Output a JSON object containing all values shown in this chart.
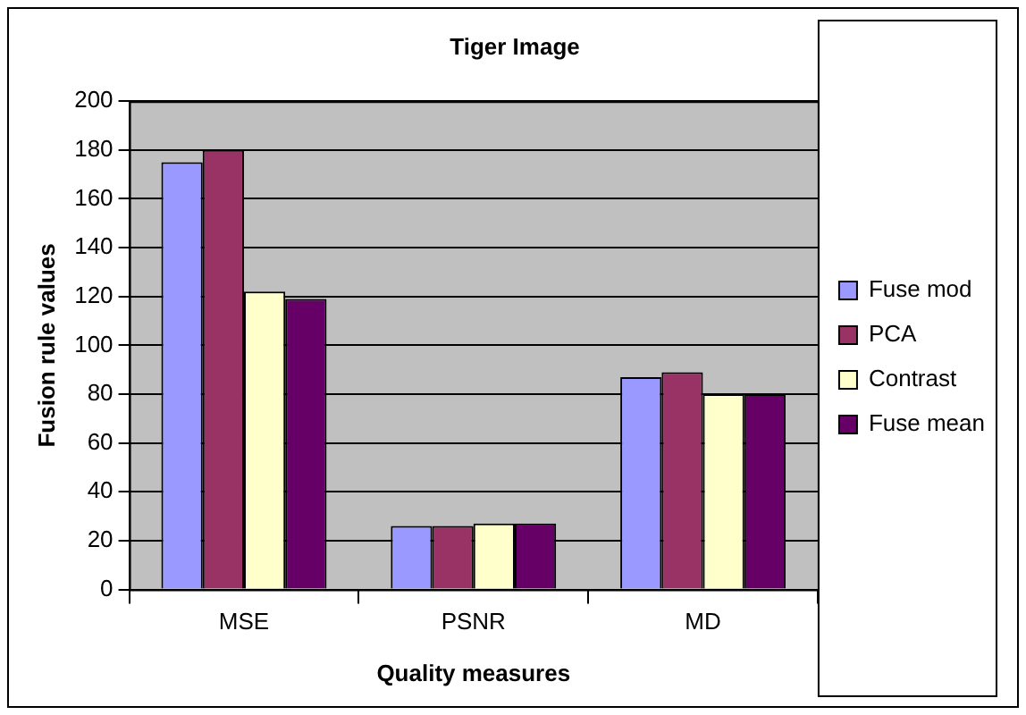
{
  "chart_data": {
    "type": "bar",
    "title": "Tiger Image",
    "xlabel": "Quality measures",
    "ylabel": "Fusion rule values",
    "categories": [
      "MSE",
      "PSNR",
      "MD"
    ],
    "series": [
      {
        "name": "Fuse mod",
        "color": "#9999ff",
        "values": [
          175,
          26,
          87
        ]
      },
      {
        "name": "PCA",
        "color": "#993366",
        "values": [
          180,
          26,
          89
        ]
      },
      {
        "name": "Contrast",
        "color": "#ffffcc",
        "values": [
          122,
          27,
          80
        ]
      },
      {
        "name": "Fuse mean",
        "color": "#660066",
        "values": [
          119,
          27,
          80
        ]
      }
    ],
    "ylim": [
      0,
      200
    ],
    "yticks": [
      0,
      20,
      40,
      60,
      80,
      100,
      120,
      140,
      160,
      180,
      200
    ],
    "grid": "y",
    "legend": "right"
  }
}
